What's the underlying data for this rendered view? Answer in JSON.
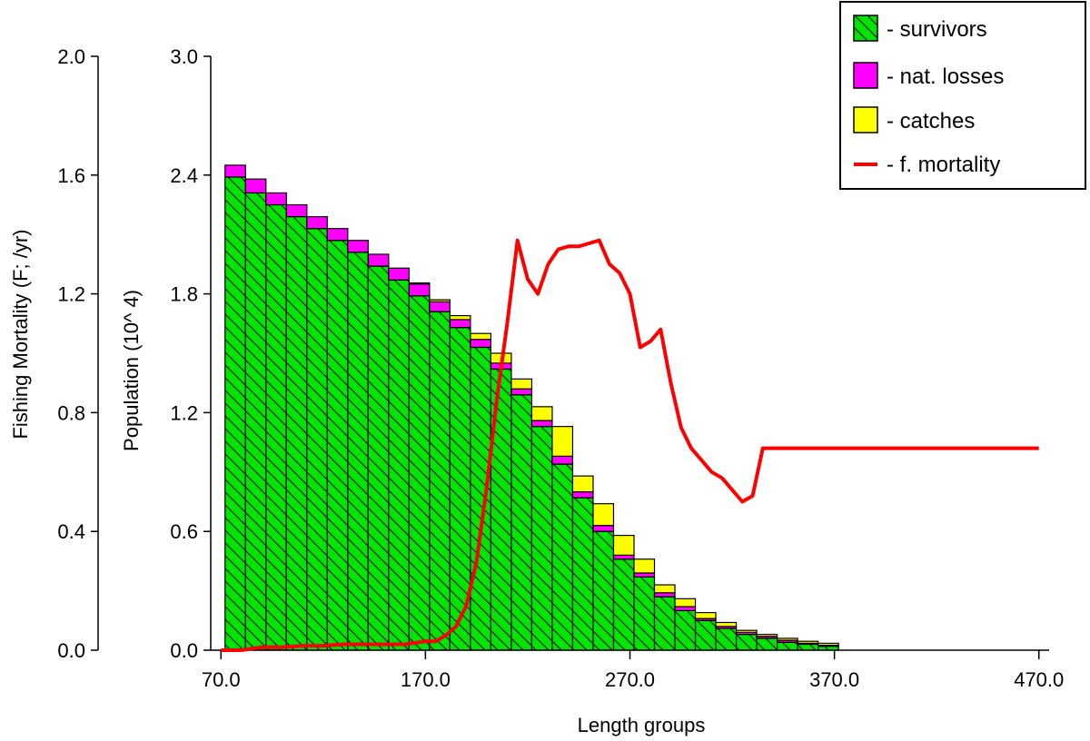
{
  "chart_data": {
    "type": "bar",
    "xlabel": "Length groups",
    "ylabel": "Population (10^ 4)",
    "y2label": "Fishing Mortality (F; /yr)",
    "xlim": [
      65,
      475
    ],
    "ylim": [
      0,
      3.0
    ],
    "y2lim": [
      0,
      2.0
    ],
    "x_ticks": [
      "70.0",
      "170.0",
      "270.0",
      "370.0",
      "470.0"
    ],
    "x_tick_values": [
      70,
      170,
      270,
      370,
      470
    ],
    "y_ticks": [
      "0.0",
      "0.6",
      "1.2",
      "1.8",
      "2.4",
      "3.0"
    ],
    "y_tick_values": [
      0,
      0.6,
      1.2,
      1.8,
      2.4,
      3.0
    ],
    "y2_ticks": [
      "0.0",
      "0.4",
      "0.8",
      "1.2",
      "1.6",
      "2.0"
    ],
    "y2_tick_values": [
      0,
      0.4,
      0.8,
      1.2,
      1.6,
      2.0
    ],
    "bar_width": 10,
    "bar_starts": [
      72,
      82,
      92,
      102,
      112,
      122,
      132,
      142,
      152,
      162,
      172,
      182,
      192,
      202,
      212,
      222,
      232,
      242,
      252,
      262,
      272,
      282,
      292,
      302,
      312,
      322,
      332,
      342,
      352,
      362
    ],
    "series": [
      {
        "name": "survivors",
        "values": [
          2.39,
          2.31,
          2.25,
          2.19,
          2.13,
          2.07,
          2.01,
          1.94,
          1.87,
          1.79,
          1.71,
          1.63,
          1.53,
          1.42,
          1.29,
          1.13,
          0.94,
          0.77,
          0.6,
          0.46,
          0.37,
          0.27,
          0.2,
          0.15,
          0.11,
          0.08,
          0.06,
          0.04,
          0.03,
          0.02
        ]
      },
      {
        "name": "nat. losses",
        "values": [
          0.06,
          0.07,
          0.06,
          0.06,
          0.06,
          0.06,
          0.06,
          0.06,
          0.06,
          0.06,
          0.05,
          0.04,
          0.04,
          0.03,
          0.03,
          0.03,
          0.04,
          0.03,
          0.03,
          0.02,
          0.02,
          0.02,
          0.02,
          0.01,
          0.01,
          0.01,
          0.01,
          0.01,
          0.005,
          0.005
        ]
      },
      {
        "name": "catches",
        "values": [
          0,
          0,
          0,
          0,
          0,
          0,
          0,
          0,
          0,
          0.005,
          0.01,
          0.02,
          0.03,
          0.05,
          0.05,
          0.07,
          0.15,
          0.08,
          0.11,
          0.1,
          0.07,
          0.04,
          0.04,
          0.03,
          0.02,
          0.01,
          0.01,
          0.01,
          0.01,
          0.01
        ]
      }
    ],
    "line_series": {
      "name": "f. mortality",
      "axis": "y2",
      "x": [
        70,
        80,
        90,
        100,
        110,
        120,
        130,
        140,
        150,
        160,
        170,
        175,
        180,
        185,
        190,
        195,
        200,
        205,
        210,
        215,
        220,
        225,
        230,
        235,
        240,
        245,
        250,
        255,
        260,
        265,
        270,
        275,
        280,
        285,
        290,
        295,
        300,
        305,
        310,
        315,
        320,
        325,
        330,
        335,
        340,
        345,
        350,
        355,
        360,
        365,
        370,
        380,
        400,
        420,
        440,
        470
      ],
      "y": [
        0.0,
        0.0,
        0.01,
        0.01,
        0.015,
        0.015,
        0.02,
        0.02,
        0.02,
        0.02,
        0.03,
        0.03,
        0.05,
        0.08,
        0.15,
        0.3,
        0.55,
        0.85,
        1.1,
        1.38,
        1.25,
        1.2,
        1.3,
        1.35,
        1.36,
        1.36,
        1.37,
        1.38,
        1.3,
        1.27,
        1.2,
        1.02,
        1.04,
        1.08,
        0.9,
        0.75,
        0.68,
        0.64,
        0.6,
        0.58,
        0.54,
        0.5,
        0.52,
        0.68,
        0.68,
        0.68,
        0.68,
        0.68,
        0.68,
        0.68,
        0.68,
        0.68,
        0.68,
        0.68,
        0.68,
        0.68
      ]
    },
    "legend": [
      {
        "label": "- survivors",
        "color": "#00e400",
        "pattern": "hatch"
      },
      {
        "label": "- nat. losses",
        "color": "#ff00ff"
      },
      {
        "label": "- catches",
        "color": "#ffff00"
      },
      {
        "label": "- f. mortality",
        "color": "#ff0000",
        "kind": "line"
      }
    ],
    "legend_position": "top-right",
    "grid": false
  }
}
